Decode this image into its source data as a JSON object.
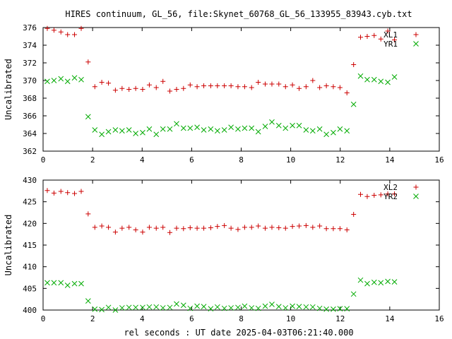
{
  "title": "HIRES continuum, GL_56, file:Skynet_60768_GL_56_133955_83943.cyb.txt",
  "xlabel": "rel seconds : UT date 2025-04-03T06:21:40.000",
  "chart_data": [
    {
      "type": "scatter",
      "ylabel": "Uncalibrated",
      "xlim": [
        0,
        16
      ],
      "ylim": [
        362,
        376
      ],
      "xticks": [
        0,
        2,
        4,
        6,
        8,
        10,
        12,
        14,
        16
      ],
      "yticks": [
        362,
        364,
        366,
        368,
        370,
        372,
        374,
        376
      ],
      "legend": "top-right",
      "series": [
        {
          "name": "XL1",
          "marker": "plus",
          "color": "#cc0000",
          "x": [
            0.17,
            0.44,
            0.72,
            0.99,
            1.27,
            1.54,
            1.82,
            2.09,
            2.37,
            2.64,
            2.92,
            3.19,
            3.47,
            3.74,
            4.02,
            4.29,
            4.57,
            4.84,
            5.12,
            5.39,
            5.67,
            5.94,
            6.22,
            6.49,
            6.77,
            7.04,
            7.32,
            7.59,
            7.87,
            8.14,
            8.42,
            8.69,
            8.97,
            9.24,
            9.52,
            9.79,
            10.07,
            10.34,
            10.62,
            10.89,
            11.17,
            11.44,
            11.72,
            11.99,
            12.27,
            12.54,
            12.82,
            13.09,
            13.37,
            13.64,
            13.92,
            14.19
          ],
          "y": [
            375.9,
            375.7,
            375.5,
            375.2,
            375.2,
            375.9,
            372.1,
            369.3,
            369.8,
            369.7,
            368.9,
            369.1,
            369.0,
            369.1,
            369.0,
            369.5,
            369.2,
            369.9,
            368.8,
            369.0,
            369.1,
            369.5,
            369.3,
            369.4,
            369.4,
            369.4,
            369.4,
            369.4,
            369.3,
            369.3,
            369.2,
            369.8,
            369.6,
            369.6,
            369.6,
            369.3,
            369.5,
            369.1,
            369.3,
            370.0,
            369.2,
            369.4,
            369.3,
            369.2,
            368.6,
            371.8,
            374.9,
            375.0,
            375.1,
            374.7,
            375.6,
            374.6
          ]
        },
        {
          "name": "YR1",
          "marker": "cross",
          "color": "#00aa00",
          "x": [
            0.17,
            0.44,
            0.72,
            0.99,
            1.27,
            1.54,
            1.82,
            2.09,
            2.37,
            2.64,
            2.92,
            3.19,
            3.47,
            3.74,
            4.02,
            4.29,
            4.57,
            4.84,
            5.12,
            5.39,
            5.67,
            5.94,
            6.22,
            6.49,
            6.77,
            7.04,
            7.32,
            7.59,
            7.87,
            8.14,
            8.42,
            8.69,
            8.97,
            9.24,
            9.52,
            9.79,
            10.07,
            10.34,
            10.62,
            10.89,
            11.17,
            11.44,
            11.72,
            11.99,
            12.27,
            12.54,
            12.82,
            13.09,
            13.37,
            13.64,
            13.92,
            14.19
          ],
          "y": [
            369.9,
            370.0,
            370.2,
            369.9,
            370.3,
            370.1,
            365.9,
            364.4,
            363.9,
            364.2,
            364.4,
            364.3,
            364.4,
            364.0,
            364.1,
            364.5,
            363.9,
            364.5,
            364.5,
            365.1,
            364.6,
            364.6,
            364.7,
            364.4,
            364.5,
            364.3,
            364.4,
            364.7,
            364.5,
            364.6,
            364.6,
            364.2,
            364.8,
            365.3,
            364.9,
            364.6,
            364.9,
            364.9,
            364.4,
            364.3,
            364.5,
            363.9,
            364.1,
            364.5,
            364.3,
            367.3,
            370.5,
            370.1,
            370.1,
            369.9,
            369.8,
            370.4
          ]
        }
      ]
    },
    {
      "type": "scatter",
      "ylabel": "Uncalibrated",
      "xlim": [
        0,
        16
      ],
      "ylim": [
        400,
        430
      ],
      "xticks": [
        0,
        2,
        4,
        6,
        8,
        10,
        12,
        14,
        16
      ],
      "yticks": [
        400,
        405,
        410,
        415,
        420,
        425,
        430
      ],
      "legend": "top-right",
      "series": [
        {
          "name": "XL2",
          "marker": "plus",
          "color": "#cc0000",
          "x": [
            0.17,
            0.44,
            0.72,
            0.99,
            1.27,
            1.54,
            1.82,
            2.09,
            2.37,
            2.64,
            2.92,
            3.19,
            3.47,
            3.74,
            4.02,
            4.29,
            4.57,
            4.84,
            5.12,
            5.39,
            5.67,
            5.94,
            6.22,
            6.49,
            6.77,
            7.04,
            7.32,
            7.59,
            7.87,
            8.14,
            8.42,
            8.69,
            8.97,
            9.24,
            9.52,
            9.79,
            10.07,
            10.34,
            10.62,
            10.89,
            11.17,
            11.44,
            11.72,
            11.99,
            12.27,
            12.54,
            12.82,
            13.09,
            13.37,
            13.64,
            13.92,
            14.19
          ],
          "y": [
            427.6,
            427.0,
            427.4,
            427.1,
            426.9,
            427.4,
            422.2,
            419.1,
            419.4,
            419.1,
            418.0,
            418.9,
            419.1,
            418.5,
            418.0,
            419.1,
            418.9,
            419.1,
            417.9,
            418.9,
            418.8,
            419.0,
            418.9,
            418.9,
            419.0,
            419.3,
            419.5,
            418.9,
            418.6,
            419.1,
            419.1,
            419.4,
            418.9,
            419.1,
            419.0,
            418.9,
            419.3,
            419.4,
            419.5,
            419.1,
            419.4,
            418.8,
            418.8,
            418.8,
            418.5,
            422.1,
            426.7,
            426.2,
            426.5,
            426.6,
            426.8,
            426.8
          ]
        },
        {
          "name": "YR2",
          "marker": "cross",
          "color": "#00aa00",
          "x": [
            0.17,
            0.44,
            0.72,
            0.99,
            1.27,
            1.54,
            1.82,
            2.09,
            2.37,
            2.64,
            2.92,
            3.19,
            3.47,
            3.74,
            4.02,
            4.29,
            4.57,
            4.84,
            5.12,
            5.39,
            5.67,
            5.94,
            6.22,
            6.49,
            6.77,
            7.04,
            7.32,
            7.59,
            7.87,
            8.14,
            8.42,
            8.69,
            8.97,
            9.24,
            9.52,
            9.79,
            10.07,
            10.34,
            10.62,
            10.89,
            11.17,
            11.44,
            11.72,
            11.99,
            12.27,
            12.54,
            12.82,
            13.09,
            13.37,
            13.64,
            13.92,
            14.19
          ],
          "y": [
            406.3,
            406.3,
            406.3,
            405.7,
            406.1,
            406.1,
            402.1,
            400.2,
            400.1,
            400.6,
            400.0,
            400.5,
            400.6,
            400.6,
            400.6,
            400.7,
            400.7,
            400.5,
            400.6,
            401.4,
            401.1,
            400.4,
            400.9,
            400.8,
            400.3,
            400.7,
            400.4,
            400.5,
            400.6,
            400.9,
            400.5,
            400.4,
            400.9,
            401.3,
            400.8,
            400.5,
            400.9,
            400.8,
            400.7,
            400.7,
            400.4,
            400.2,
            400.2,
            400.3,
            400.3,
            403.7,
            406.9,
            406.1,
            406.4,
            406.3,
            406.6,
            406.5
          ]
        }
      ]
    }
  ]
}
